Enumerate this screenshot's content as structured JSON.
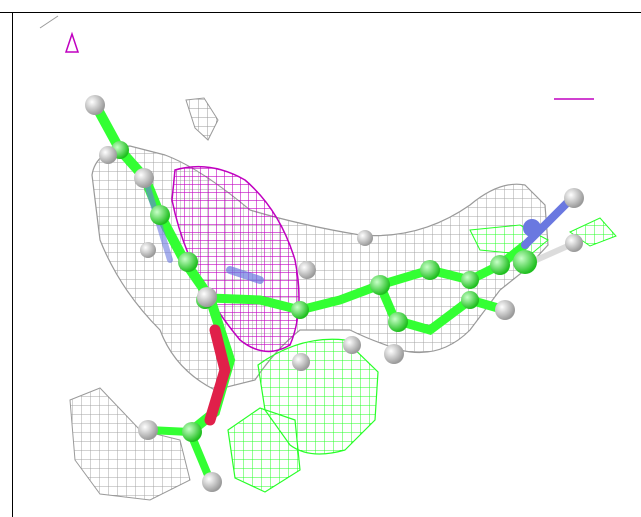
{
  "scene": {
    "colors": {
      "background": "#ffffff",
      "density_mesh": "#a9a9a9",
      "positive_mesh": "#c000c0",
      "difference_mesh": "#28ff28",
      "carbon": "#33ff33",
      "hydrogen": "#dcdcdc",
      "nitrogen": "#6a78e0",
      "oxygen_bond": "#e0204a",
      "frame": "#000000"
    }
  }
}
